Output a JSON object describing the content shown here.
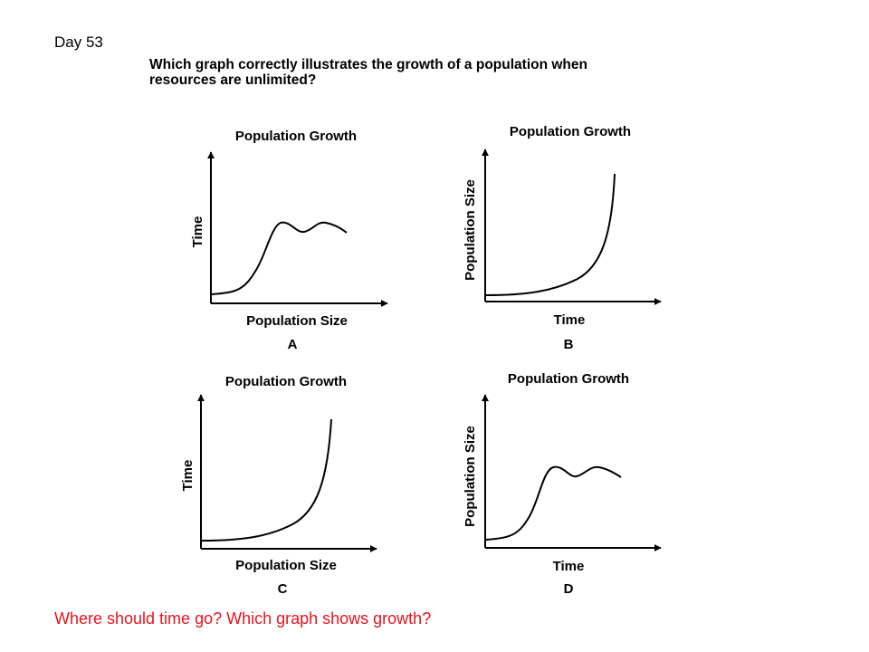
{
  "day_label": "Day 53",
  "question": {
    "line1": "Which graph correctly illustrates the growth of a population when",
    "line2": "resources are unlimited?"
  },
  "prompt": {
    "text": "Where should time go?  Which graph shows growth?",
    "color": "#e8141e"
  },
  "graphs": [
    {
      "letter": "A",
      "title": "Population Growth",
      "xlabel": "Population Size",
      "ylabel": "Time",
      "curve": "logistic"
    },
    {
      "letter": "B",
      "title": "Population Growth",
      "xlabel": "Time",
      "ylabel": "Population Size",
      "curve": "exponential"
    },
    {
      "letter": "C",
      "title": "Population Growth",
      "xlabel": "Population Size",
      "ylabel": "Time",
      "curve": "exponential"
    },
    {
      "letter": "D",
      "title": "Population Growth",
      "xlabel": "Time",
      "ylabel": "Population Size",
      "curve": "logistic"
    }
  ]
}
